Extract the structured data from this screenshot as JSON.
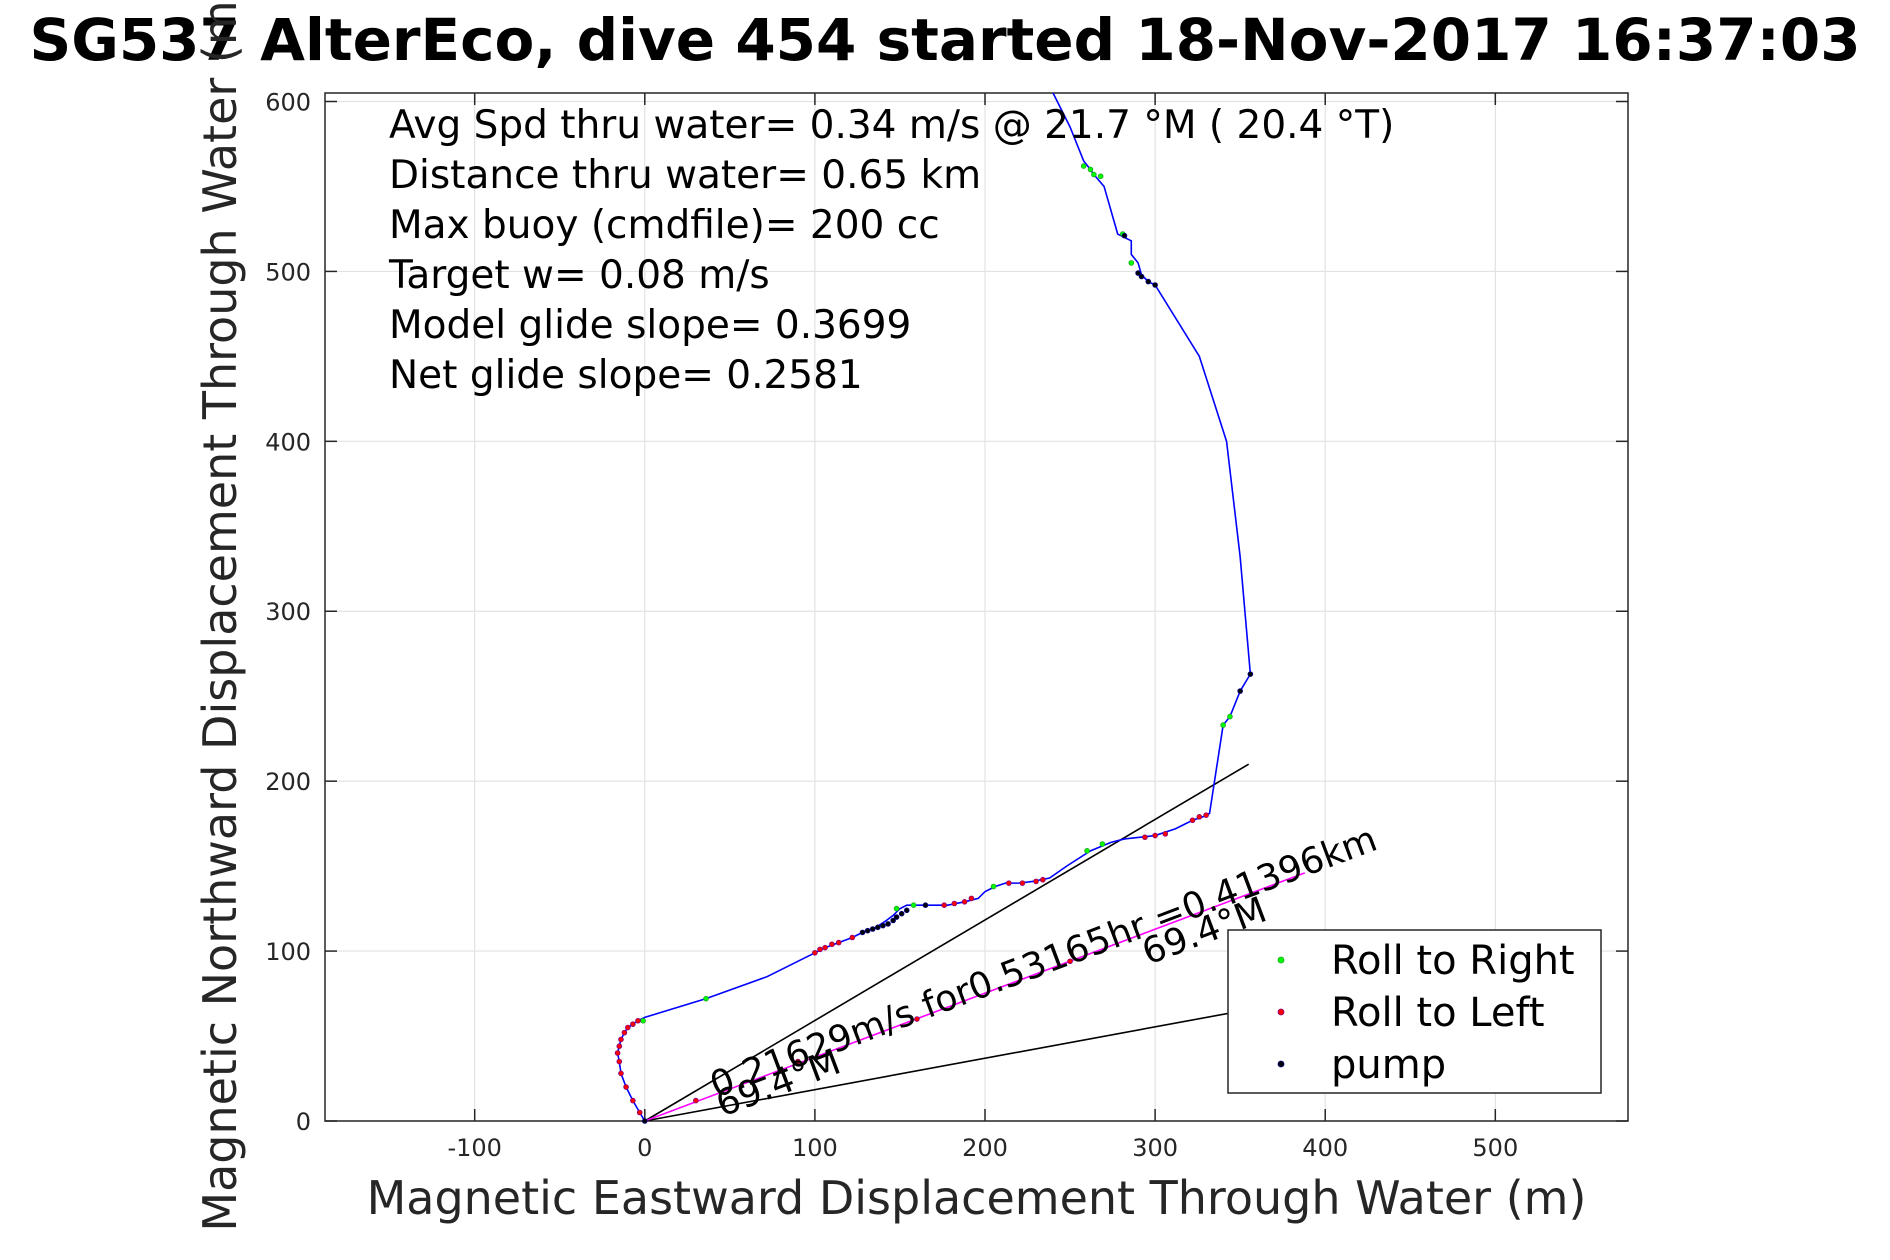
{
  "chart_data": {
    "type": "line",
    "title": "SG537 AlterEco, dive 454 started 18-Nov-2017 16:37:03",
    "xlabel": "Magnetic Eastward Displacement Through Water (m)",
    "ylabel": "Magnetic Northward Displacement Through Water (m)",
    "xlim": [
      -188,
      578
    ],
    "ylim": [
      0,
      605
    ],
    "xticks": [
      -100,
      0,
      100,
      200,
      300,
      400,
      500
    ],
    "yticks": [
      0,
      100,
      200,
      300,
      400,
      500,
      600
    ],
    "grid": true,
    "legend_position": "bottom-right",
    "info_lines": [
      "Avg Spd thru water=  0.34 m/s @  21.7 °M ( 20.4 °T)",
      "Distance thru water=  0.65 km",
      "Max buoy (cmdfile)= 200 cc",
      "Target w= 0.08 m/s",
      "Model glide slope= 0.3699",
      "Net glide slope= 0.2581"
    ],
    "annotations": {
      "current_text": "0.21629m/s for0.53165hr =0.41396km",
      "heading_1": "69.4°M",
      "heading_2": "69.4°M"
    },
    "track": {
      "name": "track",
      "color": "#0000ff",
      "x": [
        0,
        -3,
        -7,
        -11,
        -14,
        -15,
        -16,
        -15,
        -14,
        -12,
        -10,
        -7,
        -4,
        0,
        36,
        72,
        100,
        106,
        114,
        122,
        128,
        136,
        142,
        146,
        150,
        154,
        158,
        164,
        178,
        188,
        196,
        200,
        206,
        212,
        220,
        228,
        238,
        248,
        262,
        274,
        282,
        300,
        312,
        322,
        328,
        332,
        340,
        344,
        350,
        356,
        350,
        342,
        326,
        300,
        296,
        292,
        290,
        286,
        286,
        278,
        270,
        264,
        262,
        258,
        250,
        240
      ],
      "y": [
        0,
        5,
        12,
        20,
        28,
        35,
        40,
        44,
        48,
        52,
        55,
        57,
        59,
        61,
        72,
        85,
        99,
        102,
        105,
        108,
        111,
        114,
        118,
        121,
        125,
        127,
        127,
        127,
        127,
        129,
        131,
        135,
        138,
        140,
        140,
        141,
        143,
        150,
        159,
        164,
        166,
        168,
        172,
        177,
        179,
        181,
        233,
        238,
        253,
        263,
        332,
        400,
        450,
        492,
        494,
        498,
        505,
        510,
        518,
        522,
        550,
        557,
        560,
        565,
        585,
        605
      ]
    },
    "series": [
      {
        "name": "Roll to Right",
        "color": "#00ff00",
        "x": [
          -1,
          36,
          148,
          158,
          205,
          260,
          269,
          340,
          344,
          286,
          281,
          258,
          262,
          264,
          268
        ],
        "y": [
          59,
          72,
          125,
          127,
          138,
          159,
          163,
          233,
          238,
          505,
          522,
          562,
          560,
          557,
          556
        ],
        "edge_color": "#20a020"
      },
      {
        "name": "Roll to Left",
        "color": "#ff0000",
        "x": [
          -3,
          -7,
          -11,
          -14,
          -15,
          -16,
          -15,
          -14,
          -12,
          -10,
          -7,
          -4,
          100,
          103,
          106,
          110,
          114,
          122,
          176,
          182,
          188,
          192,
          214,
          222,
          230,
          234,
          294,
          300,
          306,
          322,
          326,
          330,
          30,
          90,
          160,
          250
        ],
        "y": [
          5,
          12,
          20,
          28,
          35,
          40,
          44,
          48,
          52,
          55,
          57,
          59,
          99,
          101,
          102,
          104,
          105,
          108,
          127,
          128,
          129,
          131,
          140,
          140,
          141,
          142,
          167,
          168,
          169,
          177,
          179,
          180,
          12,
          35,
          60,
          94
        ],
        "edge_color": "#800080"
      },
      {
        "name": "pump",
        "color": "#000000",
        "x": [
          0,
          128,
          131,
          134,
          137,
          140,
          143,
          146,
          148,
          151,
          154,
          165,
          300,
          296,
          292,
          290,
          350,
          356,
          282
        ],
        "y": [
          0,
          111,
          112,
          113,
          114,
          115,
          116,
          118,
          120,
          122,
          124,
          127,
          492,
          494,
          497,
          499,
          253,
          263,
          521
        ],
        "edge_color": "#000080"
      }
    ],
    "glide_slope_line": {
      "name": "Model glide slope",
      "x": [
        0,
        355
      ],
      "y": [
        0,
        210
      ],
      "color": "#000000"
    },
    "net_slope_line": {
      "name": "Net glide slope",
      "x": [
        0,
        352
      ],
      "y": [
        0,
        65
      ],
      "color": "#000000"
    },
    "current_line": {
      "name": "current",
      "x": [
        0,
        388
      ],
      "y": [
        0,
        146
      ],
      "color": "#ff00ff"
    }
  }
}
